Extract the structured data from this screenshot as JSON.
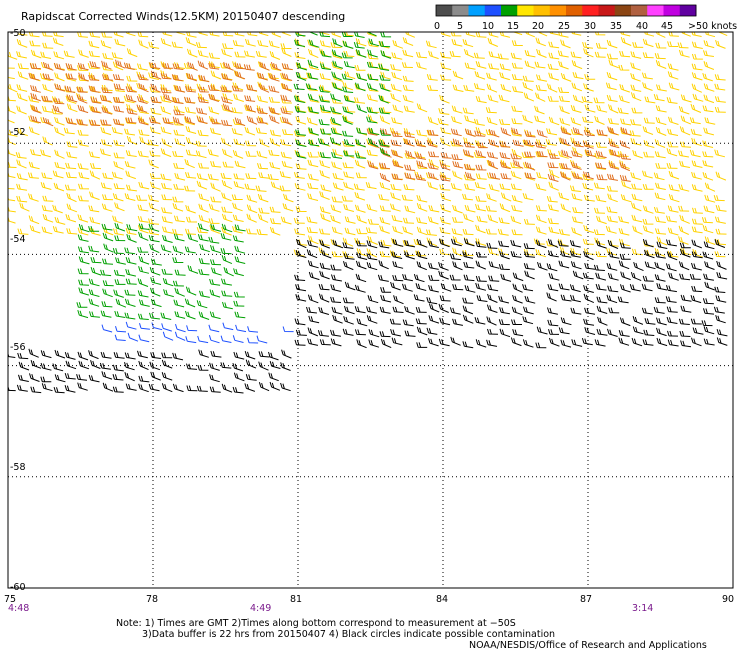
{
  "title": "Rapidscat Corrected Winds(12.5KM) 20150407 descending",
  "legend": {
    "labels": [
      "0",
      "5",
      "10",
      "15",
      "20",
      "25",
      "30",
      "35",
      "40",
      "45",
      ">50 knots"
    ],
    "colors": [
      "#4d4d4d",
      "#8c8c8c",
      "#00a0ff",
      "#1e50ff",
      "#00a000",
      "#ffe600",
      "#ffc000",
      "#ff9000",
      "#e06000",
      "#ff2020",
      "#c81818",
      "#8b4513",
      "#b06040",
      "#ff40ff",
      "#c000e0",
      "#6000a0"
    ]
  },
  "axes": {
    "x_ticks": [
      "75",
      "78",
      "81",
      "84",
      "87",
      "90"
    ],
    "y_ticks": [
      "-50",
      "-52",
      "-54",
      "-56",
      "-58",
      "-60"
    ],
    "pass_times": [
      "4:48",
      "4:49",
      "3:14"
    ]
  },
  "notes": {
    "line1": "Note: 1) Times are GMT 2)Times along bottom correspond to measurement at −50S",
    "line2": "3)Data buffer is 22 hrs from 20150407 4) Black circles indicate possible contamination",
    "credit": "NOAA/NESDIS/Office of Research and Applications"
  },
  "chart_data": {
    "type": "wind barb map",
    "title": "Rapidscat Corrected Winds(12.5KM) 20150407 descending",
    "x_range_lon": [
      75,
      90
    ],
    "y_range_lat": [
      -50,
      -60
    ],
    "grid": true,
    "legend_position": "top-right",
    "speed_bins_knots": [
      0,
      5,
      10,
      15,
      20,
      25,
      30,
      35,
      40,
      45,
      50
    ],
    "pass_time_lon": [
      75,
      79,
      88
    ],
    "swaths": [
      {
        "region": "west swath north",
        "lon": [
          75,
          81
        ],
        "lat": [
          -50,
          -53.8
        ],
        "speed_knots": 22,
        "color": "#ffd200"
      },
      {
        "region": "west swath strong core",
        "lon": [
          75.5,
          81
        ],
        "lat": [
          -50.6,
          -51.8
        ],
        "speed_knots": 32,
        "color": "#e07020"
      },
      {
        "region": "west swath green",
        "lon": [
          76.5,
          80
        ],
        "lat": [
          -53.5,
          -55.3
        ],
        "speed_knots": 17,
        "color": "#00a000"
      },
      {
        "region": "west swath blue",
        "lon": [
          77,
          81
        ],
        "lat": [
          -55.3,
          -55.7
        ],
        "speed_knots": 12,
        "color": "#1e50ff"
      },
      {
        "region": "west swath contamination",
        "lon": [
          75,
          81
        ],
        "lat": [
          -55.8,
          -56.5
        ],
        "speed_knots": 15,
        "color": "#000000"
      },
      {
        "region": "east swath north",
        "lon": [
          81,
          90
        ],
        "lat": [
          -50,
          -54.2
        ],
        "speed_knots": 24,
        "color": "#ffd200"
      },
      {
        "region": "east swath core",
        "lon": [
          82.5,
          88
        ],
        "lat": [
          -51.8,
          -52.8
        ],
        "speed_knots": 31,
        "color": "#e07020"
      },
      {
        "region": "east swath green patch",
        "lon": [
          81,
          83
        ],
        "lat": [
          -50,
          -52.3
        ],
        "speed_knots": 17,
        "color": "#00a000"
      },
      {
        "region": "east swath contamination edge",
        "lon": [
          81,
          90
        ],
        "lat": [
          -53.8,
          -55.8
        ],
        "speed_knots": 18,
        "color": "#000000"
      }
    ]
  }
}
